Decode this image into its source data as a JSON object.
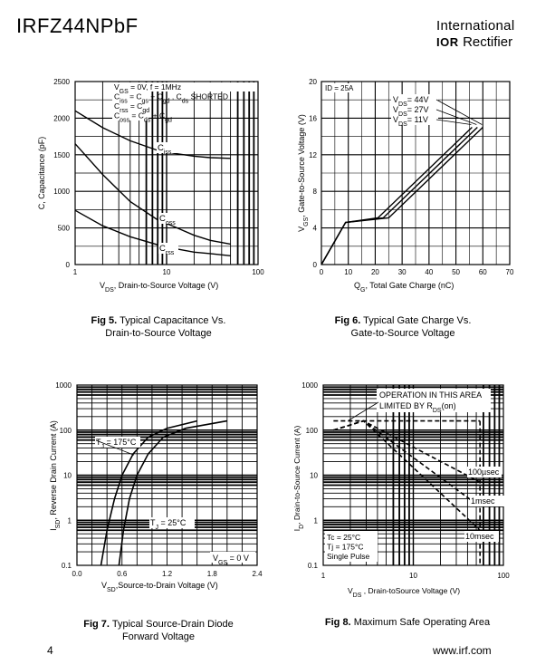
{
  "header": {
    "part_number": "IRFZ44NPbF",
    "brand_line1": "International",
    "brand_logo": "IOR",
    "brand_line2": "Rectifier"
  },
  "footer": {
    "page_number": "4",
    "website": "www.irf.com"
  },
  "captions": {
    "fig5_num": "Fig 5.",
    "fig5_text1": "Typical Capacitance Vs.",
    "fig5_text2": "Drain-to-Source Voltage",
    "fig6_num": "Fig 6.",
    "fig6_text1": "Typical Gate Charge Vs.",
    "fig6_text2": "Gate-to-Source Voltage",
    "fig7_num": "Fig 7.",
    "fig7_text1": "Typical Source-Drain Diode",
    "fig7_text2": "Forward Voltage",
    "fig8_num": "Fig 8.",
    "fig8_text1": "Maximum Safe Operating Area"
  },
  "chart_data": [
    {
      "id": "fig5",
      "type": "line",
      "xscale": "log",
      "xlim": [
        1,
        100
      ],
      "ylim": [
        0,
        2500
      ],
      "xticks": [
        "1",
        "10",
        "100"
      ],
      "yticks": [
        "0",
        "500",
        "1000",
        "1500",
        "2000",
        "2500"
      ],
      "xlabel_main": "V",
      "xlabel_sub": "DS",
      "xlabel_rest": ", Drain-to-Source Voltage (V)",
      "ylabel": "C, Capacitance (pF)",
      "legend_lines": [
        {
          "main": "V",
          "sub": "GS",
          "rest": " = 0V,       f = 1MHz"
        },
        {
          "main": "C",
          "sub": "iss",
          "rest": " = C",
          "sub2": "gs",
          "rest2": " + C",
          "sub3": "gd",
          "rest3": " ,  C",
          "sub4": "ds",
          "rest4": "  SHORTED"
        },
        {
          "main": "C",
          "sub": "rss",
          "rest": " = C",
          "sub2": "gd",
          "rest2": "",
          "sub3": "",
          "rest3": "",
          "sub4": "",
          "rest4": ""
        },
        {
          "main": "C",
          "sub": "oss",
          "rest": " = C",
          "sub2": "ds",
          "rest2": " + C",
          "sub3": "gd",
          "rest3": "",
          "sub4": "",
          "rest4": ""
        }
      ],
      "series": [
        {
          "label_main": "C",
          "label_sub": "iss",
          "x": [
            1,
            2,
            4,
            8,
            12,
            20,
            30,
            50
          ],
          "y": [
            2100,
            1870,
            1690,
            1560,
            1520,
            1480,
            1460,
            1450
          ]
        },
        {
          "label_main": "C",
          "label_sub": "oss",
          "x": [
            1,
            2,
            4,
            8,
            12,
            20,
            30,
            50
          ],
          "y": [
            1650,
            1230,
            860,
            610,
            520,
            400,
            330,
            280
          ]
        },
        {
          "label_main": "C",
          "label_sub": "rss",
          "x": [
            1,
            2,
            4,
            8,
            12,
            20,
            30,
            50
          ],
          "y": [
            740,
            530,
            380,
            270,
            220,
            170,
            150,
            120
          ]
        }
      ]
    },
    {
      "id": "fig6",
      "type": "line",
      "xlim": [
        0,
        70
      ],
      "ylim": [
        0,
        20
      ],
      "xticks": [
        "0",
        "10",
        "20",
        "30",
        "40",
        "50",
        "60",
        "70"
      ],
      "yticks": [
        "0",
        "4",
        "8",
        "12",
        "16",
        "20"
      ],
      "xlabel_main": "Q",
      "xlabel_sub": "G",
      "xlabel_rest": ", Total Gate Charge (nC)",
      "ylabel_main": "V",
      "ylabel_sub": "GS",
      "ylabel_rest": ", Gate-to-Source Voltage (V)",
      "id_label": "ID = 25A",
      "series": [
        {
          "label_main": "V",
          "label_sub": "DS",
          "label_rest": "= 44V",
          "x": [
            0,
            9,
            25,
            60
          ],
          "y": [
            0,
            4.6,
            5.1,
            15
          ]
        },
        {
          "label_main": "V",
          "label_sub": "DS",
          "label_rest": "= 27V",
          "x": [
            0,
            9,
            23,
            58
          ],
          "y": [
            0,
            4.6,
            5.1,
            15
          ]
        },
        {
          "label_main": "V",
          "label_sub": "DS",
          "label_rest": "= 11V",
          "x": [
            0,
            9,
            21,
            56
          ],
          "y": [
            0,
            4.6,
            5.1,
            15
          ]
        }
      ]
    },
    {
      "id": "fig7",
      "type": "line",
      "yscale": "log",
      "xlim": [
        0,
        2.4
      ],
      "ylim": [
        0.1,
        1000
      ],
      "xticks": [
        "0.0",
        "0.6",
        "1.2",
        "1.8",
        "2.4"
      ],
      "yticks": [
        "0.1",
        "1",
        "10",
        "100",
        "1000"
      ],
      "xlabel_main": "V",
      "xlabel_sub": "SD",
      "xlabel_rest": ",Source-to-Drain Voltage (V)",
      "ylabel_main": "I",
      "ylabel_sub": "SD",
      "ylabel_rest": ", Reverse Drain Current (A)",
      "cond_main": "V",
      "cond_sub": "GS",
      "cond_rest": " = 0 V",
      "series": [
        {
          "label_main": "T",
          "label_sub": "J",
          "label_rest": " = 175°C",
          "x": [
            0.32,
            0.4,
            0.5,
            0.6,
            0.75,
            0.95,
            1.2,
            1.6
          ],
          "y": [
            0.1,
            0.6,
            3,
            10,
            30,
            70,
            110,
            160
          ]
        },
        {
          "label_main": "T",
          "label_sub": "J",
          "label_rest": " = 25°C",
          "x": [
            0.56,
            0.62,
            0.7,
            0.8,
            0.95,
            1.15,
            1.45,
            2.0
          ],
          "y": [
            0.1,
            0.6,
            3,
            10,
            30,
            70,
            110,
            160
          ]
        }
      ]
    },
    {
      "id": "fig8",
      "type": "line",
      "xscale": "log",
      "yscale": "log",
      "xlim": [
        1,
        100
      ],
      "ylim": [
        0.1,
        1000
      ],
      "xticks": [
        "1",
        "10",
        "100"
      ],
      "yticks": [
        "0.1",
        "1",
        "10",
        "100",
        "1000"
      ],
      "xlabel_main": "V",
      "xlabel_sub": "DS",
      "xlabel_rest": " , Drain-toSource Voltage (V)",
      "ylabel_main": "I",
      "ylabel_sub": "D",
      "ylabel_rest": ", Drain-to-Source Current (A)",
      "area_line1": "OPERATION IN THIS AREA",
      "area_line2_pre": "LIMITED BY R",
      "area_line2_sub": "DS",
      "area_line2_post": "(on)",
      "conditions": [
        "Tc = 25°C",
        "Tj = 175°C",
        "Single Pulse"
      ],
      "series": [
        {
          "name": "100µsec",
          "x": [
            1.3,
            2.8,
            55
          ],
          "y": [
            100,
            160,
            7
          ]
        },
        {
          "name": "1msec",
          "x": [
            1.3,
            2.8,
            55
          ],
          "y": [
            100,
            160,
            2
          ]
        },
        {
          "name": "10msec",
          "x": [
            1.3,
            2.8,
            55
          ],
          "y": [
            100,
            160,
            0.6
          ]
        }
      ],
      "limits": {
        "current": 160,
        "voltage": 55
      }
    }
  ]
}
